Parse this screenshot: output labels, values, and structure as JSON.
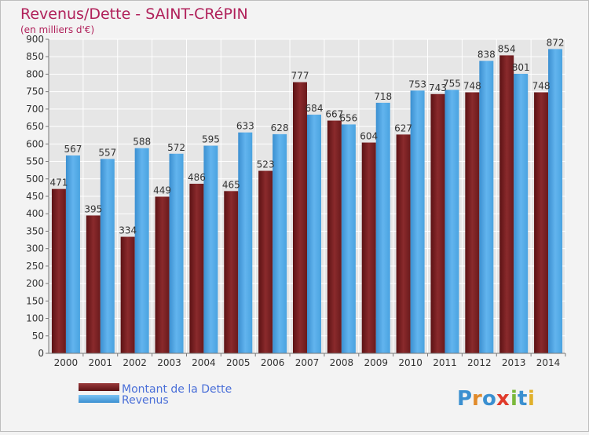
{
  "chart_data": {
    "type": "bar",
    "title": "Revenus/Dette - SAINT-CRéPIN",
    "subtitle": "(en milliers d'€)",
    "categories": [
      "2000",
      "2001",
      "2002",
      "2003",
      "2004",
      "2005",
      "2006",
      "2007",
      "2008",
      "2009",
      "2010",
      "2011",
      "2012",
      "2013",
      "2014"
    ],
    "series": [
      {
        "name": "Montant de la Dette",
        "color": "#7a1f22",
        "values": [
          471,
          395,
          334,
          449,
          486,
          465,
          523,
          777,
          667,
          604,
          627,
          743,
          748,
          854,
          748
        ]
      },
      {
        "name": "Revenus",
        "color": "#4aa3e0",
        "values": [
          567,
          557,
          588,
          572,
          595,
          633,
          628,
          684,
          656,
          718,
          753,
          755,
          838,
          801,
          872
        ]
      }
    ],
    "ylim": [
      0,
      900
    ],
    "yticks": [
      0,
      50,
      100,
      150,
      200,
      250,
      300,
      350,
      400,
      450,
      500,
      550,
      600,
      650,
      700,
      750,
      800,
      850,
      900
    ],
    "grid": true,
    "legend": "bottom-left"
  },
  "brand": {
    "logo_text": "Proxiti"
  },
  "colors": {
    "title": "#b0205a",
    "background": "#f3f3f3",
    "grid": "#ffffff"
  }
}
